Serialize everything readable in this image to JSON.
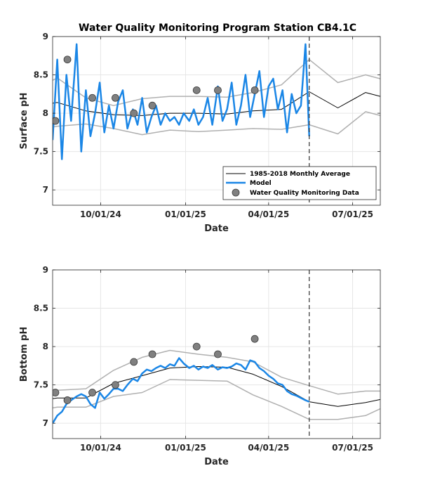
{
  "figure_title": "Water Quality Monitoring Program Station CB4.1C",
  "colors": {
    "model": "#1a86e6",
    "average": "#000000",
    "envelope": "#b0b0b0",
    "observations_fill": "#808080",
    "observations_edge": "#3a3a3a",
    "forecast_line": "#333333"
  },
  "chart_data": [
    {
      "type": "line",
      "title": "Water Quality Monitoring Program Station CB4.1C",
      "xlabel": "Date",
      "ylabel": "Surface pH",
      "xlim": [
        "2024-08-10",
        "2025-07-31"
      ],
      "ylim": [
        6.8,
        9.0
      ],
      "x_ticks": [
        "10/01/24",
        "01/01/25",
        "04/01/25",
        "07/01/25"
      ],
      "x_tick_dates": [
        "2024-10-01",
        "2025-01-01",
        "2025-04-01",
        "2025-07-01"
      ],
      "y_ticks": [
        "7",
        "7.5",
        "8",
        "8.5",
        "9"
      ],
      "grid": true,
      "forecast_divider_date": "2025-05-15",
      "legend": {
        "position": "bottom-right",
        "entries": [
          "1985-2018 Monthly Average",
          "Model",
          "Water Quality Monitoring Data"
        ]
      },
      "series": [
        {
          "name": "1985-2018 Monthly Average",
          "x": [
            "2024-08-10",
            "2024-08-15",
            "2024-09-15",
            "2024-10-15",
            "2024-11-15",
            "2024-12-15",
            "2025-01-15",
            "2025-02-15",
            "2025-03-15",
            "2025-04-15",
            "2025-05-15",
            "2025-06-15",
            "2025-07-15",
            "2025-07-31"
          ],
          "y": [
            8.13,
            8.14,
            8.03,
            7.98,
            7.97,
            8.0,
            8.0,
            7.99,
            8.03,
            8.05,
            8.28,
            8.07,
            8.27,
            8.22
          ]
        },
        {
          "name": "Average upper bound",
          "x": [
            "2024-08-10",
            "2024-08-15",
            "2024-09-15",
            "2024-10-15",
            "2024-11-15",
            "2024-12-15",
            "2025-01-15",
            "2025-02-15",
            "2025-03-15",
            "2025-04-15",
            "2025-05-15",
            "2025-06-15",
            "2025-07-15",
            "2025-07-31"
          ],
          "y": [
            8.43,
            8.46,
            8.2,
            8.1,
            8.19,
            8.22,
            8.22,
            8.21,
            8.27,
            8.37,
            8.7,
            8.4,
            8.5,
            8.45
          ]
        },
        {
          "name": "Average lower bound",
          "x": [
            "2024-08-10",
            "2024-08-15",
            "2024-09-15",
            "2024-10-15",
            "2024-11-15",
            "2024-12-15",
            "2025-01-15",
            "2025-02-15",
            "2025-03-15",
            "2025-04-15",
            "2025-05-15",
            "2025-06-15",
            "2025-07-15",
            "2025-07-31"
          ],
          "y": [
            7.82,
            7.83,
            7.86,
            7.8,
            7.72,
            7.78,
            7.76,
            7.78,
            7.8,
            7.79,
            7.85,
            7.73,
            8.02,
            7.97
          ]
        },
        {
          "name": "Model",
          "x": [
            "2024-08-10",
            "2024-08-15",
            "2024-08-20",
            "2024-08-25",
            "2024-08-30",
            "2024-09-05",
            "2024-09-10",
            "2024-09-15",
            "2024-09-20",
            "2024-09-25",
            "2024-09-30",
            "2024-10-05",
            "2024-10-10",
            "2024-10-15",
            "2024-10-20",
            "2024-10-25",
            "2024-10-30",
            "2024-11-05",
            "2024-11-10",
            "2024-11-15",
            "2024-11-20",
            "2024-11-25",
            "2024-11-30",
            "2024-12-05",
            "2024-12-10",
            "2024-12-15",
            "2024-12-20",
            "2024-12-25",
            "2024-12-30",
            "2025-01-05",
            "2025-01-10",
            "2025-01-15",
            "2025-01-20",
            "2025-01-25",
            "2025-01-30",
            "2025-02-05",
            "2025-02-10",
            "2025-02-15",
            "2025-02-20",
            "2025-02-25",
            "2025-03-02",
            "2025-03-07",
            "2025-03-12",
            "2025-03-17",
            "2025-03-22",
            "2025-03-27",
            "2025-04-01",
            "2025-04-06",
            "2025-04-11",
            "2025-04-16",
            "2025-04-21",
            "2025-04-26",
            "2025-05-01",
            "2025-05-06",
            "2025-05-11",
            "2025-05-15"
          ],
          "y": [
            7.65,
            8.7,
            7.4,
            8.5,
            7.9,
            8.9,
            7.5,
            8.3,
            7.7,
            8.0,
            8.4,
            7.75,
            8.1,
            7.8,
            8.15,
            8.3,
            7.8,
            8.05,
            7.85,
            8.2,
            7.75,
            7.95,
            8.1,
            7.85,
            8.0,
            7.9,
            7.95,
            7.85,
            8.0,
            7.9,
            8.05,
            7.85,
            7.95,
            8.2,
            7.85,
            8.35,
            7.9,
            8.05,
            8.4,
            7.85,
            8.1,
            8.5,
            7.95,
            8.25,
            8.55,
            7.95,
            8.35,
            8.45,
            8.05,
            8.3,
            7.75,
            8.25,
            8.0,
            8.1,
            8.9,
            7.7
          ]
        },
        {
          "name": "Water Quality Monitoring Data",
          "x": [
            "2024-08-13",
            "2024-08-26",
            "2024-09-22",
            "2024-10-17",
            "2024-11-06",
            "2024-11-26",
            "2025-01-13",
            "2025-02-05",
            "2025-03-17"
          ],
          "y": [
            7.9,
            8.7,
            8.2,
            8.2,
            8.0,
            8.1,
            8.3,
            8.3,
            8.3
          ]
        }
      ]
    },
    {
      "type": "line",
      "title": "",
      "xlabel": "Date",
      "ylabel": "Bottom pH",
      "xlim": [
        "2024-08-10",
        "2025-07-31"
      ],
      "ylim": [
        6.8,
        9.0
      ],
      "x_ticks": [
        "10/01/24",
        "01/01/25",
        "04/01/25",
        "07/01/25"
      ],
      "x_tick_dates": [
        "2024-10-01",
        "2025-01-01",
        "2025-04-01",
        "2025-07-01"
      ],
      "y_ticks": [
        "7",
        "7.5",
        "8",
        "8.5",
        "9"
      ],
      "grid": true,
      "forecast_divider_date": "2025-05-15",
      "series": [
        {
          "name": "1985-2018 Monthly Average",
          "x": [
            "2024-08-10",
            "2024-08-15",
            "2024-09-15",
            "2024-10-15",
            "2024-11-15",
            "2024-12-15",
            "2025-01-15",
            "2025-02-15",
            "2025-03-15",
            "2025-04-15",
            "2025-05-15",
            "2025-06-15",
            "2025-07-15",
            "2025-07-31"
          ],
          "y": [
            7.32,
            7.33,
            7.33,
            7.52,
            7.62,
            7.72,
            7.74,
            7.73,
            7.64,
            7.48,
            7.28,
            7.22,
            7.27,
            7.31
          ]
        },
        {
          "name": "Average upper bound",
          "x": [
            "2024-08-10",
            "2024-08-15",
            "2024-09-15",
            "2024-10-15",
            "2024-11-15",
            "2024-12-15",
            "2025-01-15",
            "2025-02-15",
            "2025-03-15",
            "2025-04-15",
            "2025-05-15",
            "2025-06-15",
            "2025-07-15",
            "2025-07-31"
          ],
          "y": [
            7.42,
            7.43,
            7.45,
            7.69,
            7.86,
            7.95,
            7.9,
            7.86,
            7.8,
            7.6,
            7.49,
            7.38,
            7.42,
            7.42
          ]
        },
        {
          "name": "Average lower bound",
          "x": [
            "2024-08-10",
            "2024-08-15",
            "2024-09-15",
            "2024-10-15",
            "2024-11-15",
            "2024-12-15",
            "2025-01-15",
            "2025-02-15",
            "2025-03-15",
            "2025-04-15",
            "2025-05-15",
            "2025-06-15",
            "2025-07-15",
            "2025-07-31"
          ],
          "y": [
            7.2,
            7.21,
            7.21,
            7.35,
            7.4,
            7.57,
            7.56,
            7.55,
            7.37,
            7.22,
            7.05,
            7.05,
            7.1,
            7.19
          ]
        },
        {
          "name": "Model",
          "x": [
            "2024-08-10",
            "2024-08-15",
            "2024-08-20",
            "2024-08-25",
            "2024-08-30",
            "2024-09-05",
            "2024-09-10",
            "2024-09-15",
            "2024-09-20",
            "2024-09-25",
            "2024-09-30",
            "2024-10-05",
            "2024-10-10",
            "2024-10-15",
            "2024-10-20",
            "2024-10-25",
            "2024-10-30",
            "2024-11-05",
            "2024-11-10",
            "2024-11-15",
            "2024-11-20",
            "2024-11-25",
            "2024-11-30",
            "2024-12-05",
            "2024-12-10",
            "2024-12-15",
            "2024-12-20",
            "2024-12-25",
            "2024-12-30",
            "2025-01-05",
            "2025-01-10",
            "2025-01-15",
            "2025-01-20",
            "2025-01-25",
            "2025-01-30",
            "2025-02-05",
            "2025-02-10",
            "2025-02-15",
            "2025-02-20",
            "2025-02-25",
            "2025-03-02",
            "2025-03-07",
            "2025-03-12",
            "2025-03-17",
            "2025-03-22",
            "2025-03-27",
            "2025-04-01",
            "2025-04-06",
            "2025-04-11",
            "2025-04-16",
            "2025-04-21",
            "2025-04-26",
            "2025-05-01",
            "2025-05-06",
            "2025-05-11",
            "2025-05-15"
          ],
          "y": [
            7.0,
            7.1,
            7.15,
            7.25,
            7.3,
            7.35,
            7.38,
            7.35,
            7.25,
            7.2,
            7.4,
            7.32,
            7.38,
            7.45,
            7.45,
            7.42,
            7.5,
            7.58,
            7.55,
            7.65,
            7.7,
            7.68,
            7.72,
            7.75,
            7.72,
            7.77,
            7.75,
            7.85,
            7.78,
            7.72,
            7.75,
            7.7,
            7.74,
            7.72,
            7.76,
            7.7,
            7.73,
            7.72,
            7.74,
            7.78,
            7.76,
            7.7,
            7.82,
            7.8,
            7.72,
            7.68,
            7.62,
            7.58,
            7.52,
            7.5,
            7.42,
            7.38,
            7.36,
            7.33,
            7.3,
            7.28
          ]
        },
        {
          "name": "Water Quality Monitoring Data",
          "x": [
            "2024-08-13",
            "2024-08-26",
            "2024-09-22",
            "2024-10-17",
            "2024-11-06",
            "2024-11-26",
            "2025-01-13",
            "2025-02-05",
            "2025-03-17"
          ],
          "y": [
            7.4,
            7.3,
            7.4,
            7.5,
            7.8,
            7.9,
            8.0,
            7.9,
            8.1
          ]
        }
      ]
    }
  ]
}
